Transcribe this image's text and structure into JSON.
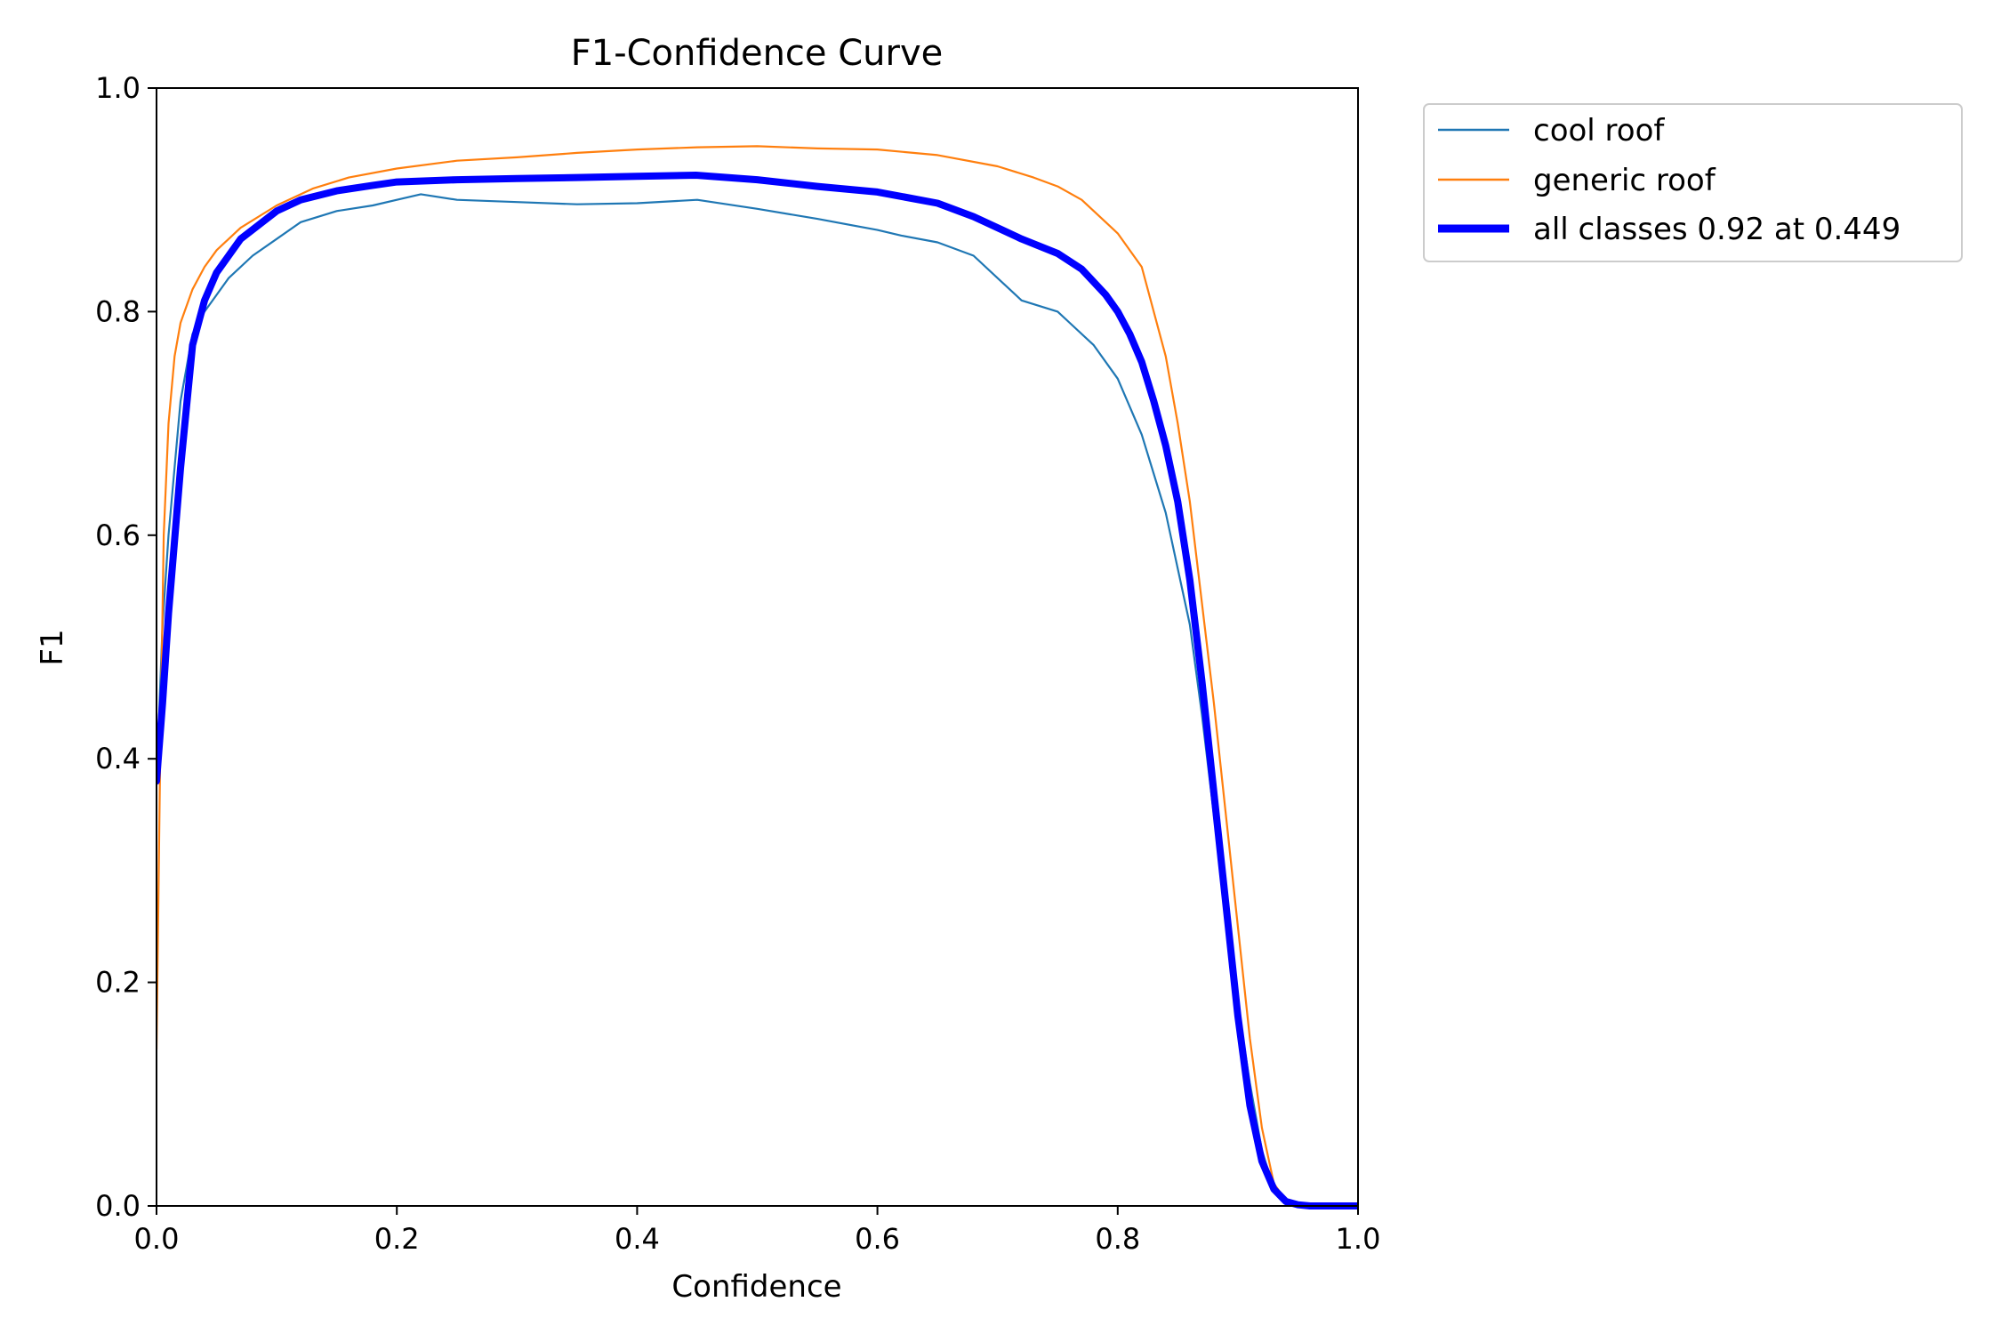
{
  "chart_data": {
    "type": "line",
    "title": "F1-Confidence Curve",
    "xlabel": "Confidence",
    "ylabel": "F1",
    "xlim": [
      0.0,
      1.0
    ],
    "ylim": [
      0.0,
      1.0
    ],
    "xticks": [
      "0.0",
      "0.2",
      "0.4",
      "0.6",
      "0.8",
      "1.0"
    ],
    "yticks": [
      "0.0",
      "0.2",
      "0.4",
      "0.6",
      "0.8",
      "1.0"
    ],
    "grid": false,
    "legend_position": "outside-top-right",
    "series": [
      {
        "name": "cool roof",
        "color": "#1f77b4",
        "line_width": "thin",
        "x": [
          0.0,
          0.005,
          0.01,
          0.02,
          0.03,
          0.04,
          0.05,
          0.06,
          0.08,
          0.1,
          0.12,
          0.15,
          0.18,
          0.2,
          0.22,
          0.25,
          0.3,
          0.35,
          0.4,
          0.45,
          0.5,
          0.55,
          0.6,
          0.62,
          0.65,
          0.68,
          0.7,
          0.72,
          0.75,
          0.76,
          0.78,
          0.8,
          0.82,
          0.84,
          0.86,
          0.87,
          0.88,
          0.89,
          0.9,
          0.91,
          0.92,
          0.93,
          0.94,
          0.95,
          1.0
        ],
        "values": [
          0.38,
          0.52,
          0.6,
          0.72,
          0.78,
          0.8,
          0.815,
          0.83,
          0.85,
          0.865,
          0.88,
          0.89,
          0.895,
          0.9,
          0.905,
          0.9,
          0.898,
          0.896,
          0.897,
          0.9,
          0.892,
          0.883,
          0.873,
          0.868,
          0.862,
          0.85,
          0.83,
          0.81,
          0.8,
          0.79,
          0.77,
          0.74,
          0.69,
          0.62,
          0.52,
          0.44,
          0.35,
          0.26,
          0.18,
          0.11,
          0.05,
          0.015,
          0.003,
          0.0,
          0.0
        ]
      },
      {
        "name": "generic roof",
        "color": "#ff7f0e",
        "line_width": "thin",
        "x": [
          0.0,
          0.003,
          0.006,
          0.01,
          0.015,
          0.02,
          0.03,
          0.04,
          0.05,
          0.07,
          0.1,
          0.13,
          0.16,
          0.2,
          0.25,
          0.3,
          0.35,
          0.4,
          0.45,
          0.5,
          0.55,
          0.6,
          0.65,
          0.7,
          0.73,
          0.75,
          0.77,
          0.79,
          0.8,
          0.82,
          0.83,
          0.84,
          0.85,
          0.86,
          0.87,
          0.88,
          0.89,
          0.9,
          0.91,
          0.92,
          0.93,
          0.94,
          0.95,
          1.0
        ],
        "values": [
          0.14,
          0.4,
          0.6,
          0.7,
          0.76,
          0.79,
          0.82,
          0.84,
          0.855,
          0.875,
          0.895,
          0.91,
          0.92,
          0.928,
          0.935,
          0.938,
          0.942,
          0.945,
          0.947,
          0.948,
          0.946,
          0.945,
          0.94,
          0.93,
          0.92,
          0.912,
          0.9,
          0.88,
          0.87,
          0.84,
          0.8,
          0.76,
          0.7,
          0.63,
          0.54,
          0.45,
          0.35,
          0.25,
          0.15,
          0.07,
          0.02,
          0.005,
          0.0,
          0.0
        ]
      },
      {
        "name": "all classes 0.92 at 0.449",
        "color": "#0000ff",
        "line_width": "thick",
        "x": [
          0.0,
          0.005,
          0.01,
          0.02,
          0.03,
          0.04,
          0.05,
          0.07,
          0.1,
          0.12,
          0.15,
          0.18,
          0.2,
          0.25,
          0.3,
          0.35,
          0.4,
          0.449,
          0.5,
          0.55,
          0.6,
          0.65,
          0.68,
          0.7,
          0.72,
          0.75,
          0.77,
          0.79,
          0.8,
          0.81,
          0.82,
          0.83,
          0.84,
          0.85,
          0.86,
          0.87,
          0.88,
          0.89,
          0.9,
          0.91,
          0.92,
          0.93,
          0.94,
          0.95,
          0.96,
          1.0
        ],
        "values": [
          0.38,
          0.45,
          0.53,
          0.66,
          0.77,
          0.81,
          0.835,
          0.865,
          0.89,
          0.9,
          0.908,
          0.913,
          0.916,
          0.918,
          0.919,
          0.92,
          0.921,
          0.922,
          0.918,
          0.912,
          0.907,
          0.897,
          0.885,
          0.875,
          0.865,
          0.852,
          0.838,
          0.815,
          0.8,
          0.78,
          0.755,
          0.72,
          0.68,
          0.63,
          0.56,
          0.47,
          0.37,
          0.27,
          0.17,
          0.09,
          0.04,
          0.015,
          0.004,
          0.001,
          0.0,
          0.0
        ]
      }
    ]
  }
}
